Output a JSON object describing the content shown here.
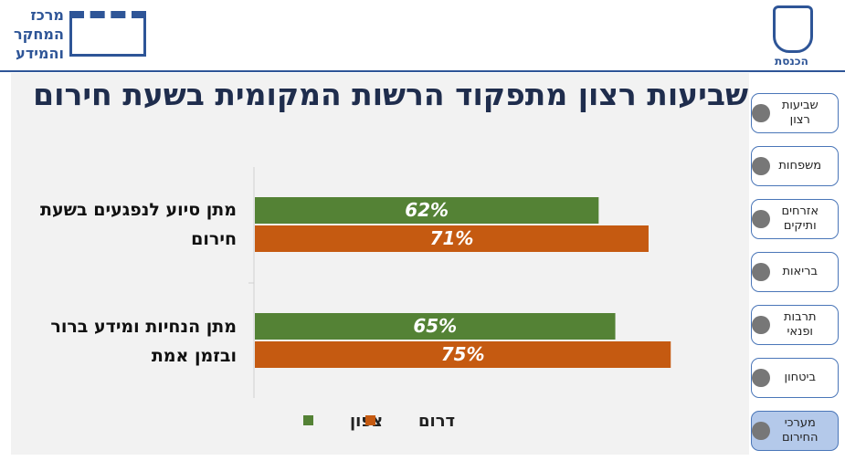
{
  "header": {
    "center_logo": "מרכז המחקר והמידע",
    "knesset_logo": "הכנסת"
  },
  "nav": [
    "שביעות רצון",
    "משפחות",
    "אזרחים ותיקים",
    "בריאות",
    "תרבות ופנאי",
    "ביטחון",
    "מערכי החירום"
  ],
  "chart_data": {
    "type": "bar",
    "orientation": "horizontal",
    "title": "שביעות רצון מתפקוד הרשות המקומית בשעת חירום",
    "categories": [
      "מתן סיוע לנפגעים בשעת חירום",
      "מתן הנחיות ומידע ברור ובזמן אמת"
    ],
    "series": [
      {
        "name": "צפון",
        "color": "#548235",
        "values": [
          62,
          65
        ],
        "value_labels": [
          "62%",
          "65%"
        ]
      },
      {
        "name": "דרום",
        "color": "#c55a11",
        "values": [
          71,
          75
        ],
        "value_labels": [
          "71%",
          "75%"
        ]
      }
    ]
  }
}
